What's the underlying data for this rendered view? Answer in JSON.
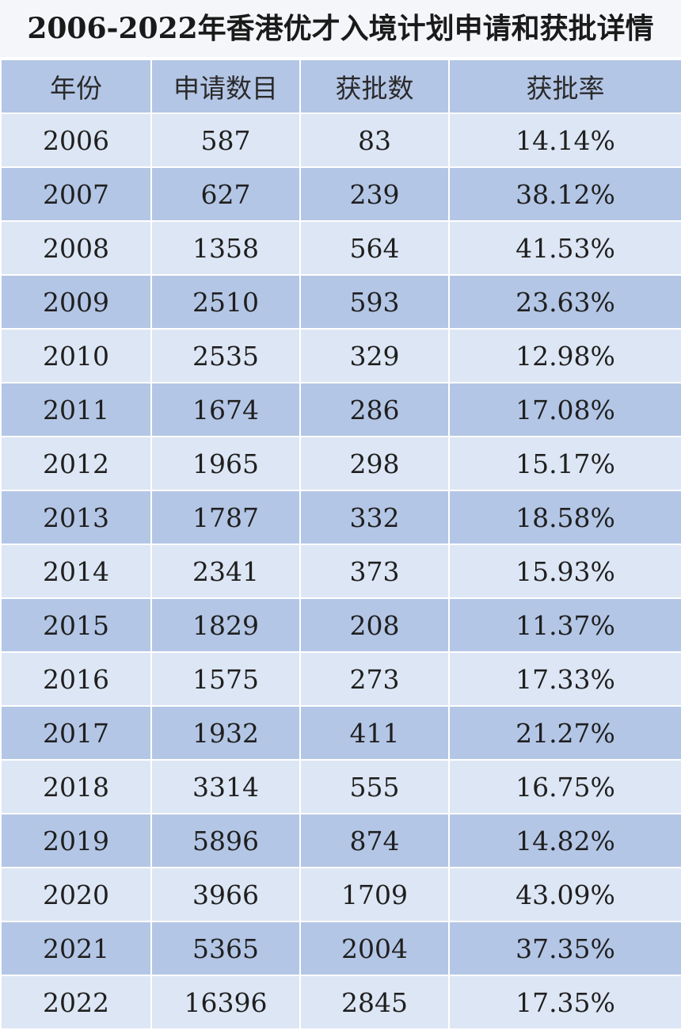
{
  "chart_data": {
    "type": "table",
    "title": "2006-2022年香港优才入境计划申请和获批详情",
    "columns": [
      "年份",
      "申请数目",
      "获批数",
      "获批率"
    ],
    "rows": [
      [
        "2006",
        "587",
        "83",
        "14.14%"
      ],
      [
        "2007",
        "627",
        "239",
        "38.12%"
      ],
      [
        "2008",
        "1358",
        "564",
        "41.53%"
      ],
      [
        "2009",
        "2510",
        "593",
        "23.63%"
      ],
      [
        "2010",
        "2535",
        "329",
        "12.98%"
      ],
      [
        "2011",
        "1674",
        "286",
        "17.08%"
      ],
      [
        "2012",
        "1965",
        "298",
        "15.17%"
      ],
      [
        "2013",
        "1787",
        "332",
        "18.58%"
      ],
      [
        "2014",
        "2341",
        "373",
        "15.93%"
      ],
      [
        "2015",
        "1829",
        "208",
        "11.37%"
      ],
      [
        "2016",
        "1575",
        "273",
        "17.33%"
      ],
      [
        "2017",
        "1932",
        "411",
        "21.27%"
      ],
      [
        "2018",
        "3314",
        "555",
        "16.75%"
      ],
      [
        "2019",
        "5896",
        "874",
        "14.82%"
      ],
      [
        "2020",
        "3966",
        "1709",
        "43.09%"
      ],
      [
        "2021",
        "5365",
        "2004",
        "37.35%"
      ],
      [
        "2022",
        "16396",
        "2845",
        "17.35%"
      ]
    ]
  },
  "colors": {
    "header_bg": "#b4c6e6",
    "row_light": "#dde6f4",
    "row_dark": "#b4c6e6",
    "title_bg": "#f4f6fa",
    "border": "#ffffff"
  }
}
